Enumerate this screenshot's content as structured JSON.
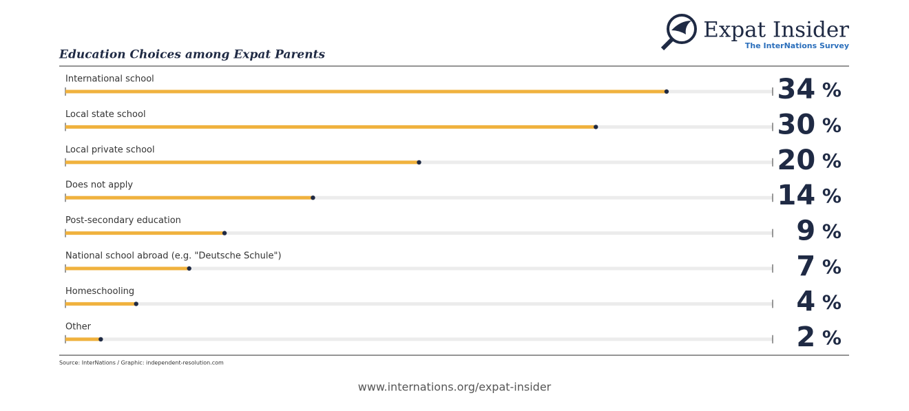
{
  "brand": {
    "name": "Expat Insider",
    "tagline": "The InterNations Survey"
  },
  "chart_data": {
    "type": "bar",
    "orientation": "horizontal",
    "title": "Education Choices among Expat Parents",
    "categories": [
      "International school",
      "Local state school",
      "Local private school",
      "Does not apply",
      "Post-secondary education",
      "National school abroad (e.g. \"Deutsche Schule\")",
      "Homeschooling",
      "Other"
    ],
    "values": [
      34,
      30,
      20,
      14,
      9,
      7,
      4,
      2
    ],
    "value_labels": [
      "34 %",
      "30 %",
      "20 %",
      "14 %",
      "9 %",
      "7 %",
      "4 %",
      "2 %"
    ],
    "color": "#f0b23e",
    "xlim": [
      0,
      40
    ],
    "source": "Source: InterNations / Graphic: independent-resolution.com"
  },
  "footer": "www.internations.org/expat-insider"
}
